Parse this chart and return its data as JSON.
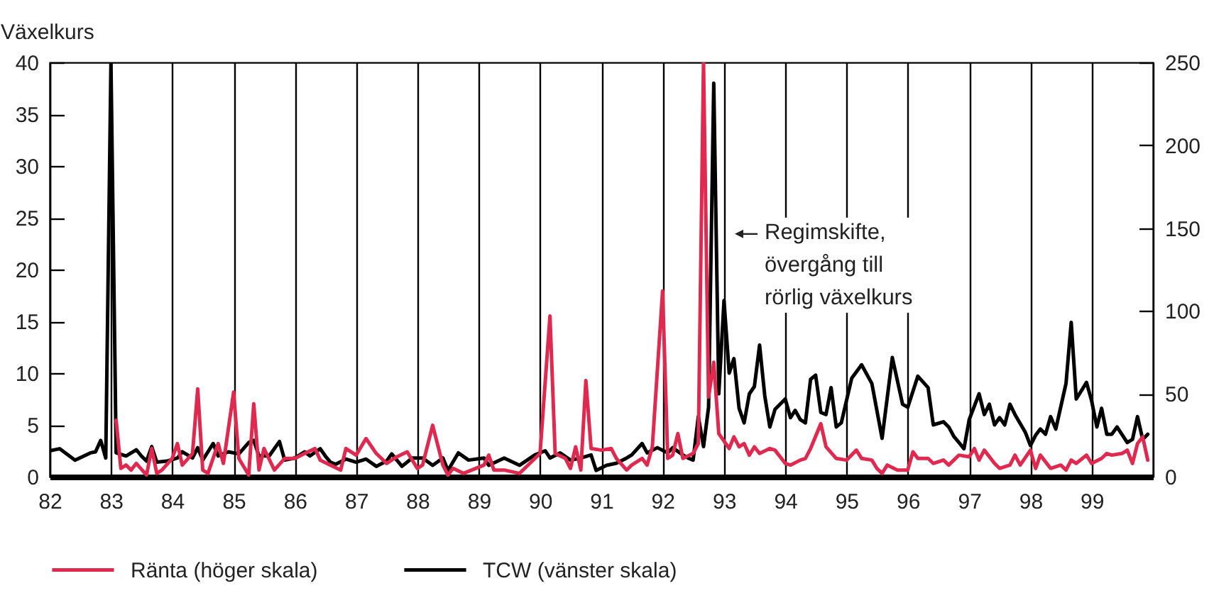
{
  "chart_data": {
    "type": "line",
    "ylabel": "Växelkurs",
    "xlim": [
      "1982-01",
      "2000-01"
    ],
    "xticks": [
      {
        "value": "1982",
        "label": "82"
      },
      {
        "value": "1983",
        "label": "83"
      },
      {
        "value": "1984",
        "label": "84"
      },
      {
        "value": "1985",
        "label": "85"
      },
      {
        "value": "1986",
        "label": "86"
      },
      {
        "value": "1987",
        "label": "87"
      },
      {
        "value": "1988",
        "label": "88"
      },
      {
        "value": "1989",
        "label": "89"
      },
      {
        "value": "1990",
        "label": "90"
      },
      {
        "value": "1991",
        "label": "91"
      },
      {
        "value": "1992",
        "label": "92"
      },
      {
        "value": "1993",
        "label": "93"
      },
      {
        "value": "1994",
        "label": "94"
      },
      {
        "value": "1995",
        "label": "95"
      },
      {
        "value": "1996",
        "label": "96"
      },
      {
        "value": "1997",
        "label": "97"
      },
      {
        "value": "1998",
        "label": "98"
      },
      {
        "value": "1999",
        "label": "99"
      }
    ],
    "ylim": [
      0,
      40
    ],
    "yticks": [
      0,
      5,
      10,
      15,
      20,
      25,
      30,
      35,
      40
    ],
    "y2lim": [
      0,
      250
    ],
    "y2ticks": [
      0,
      50,
      100,
      150,
      200,
      250
    ],
    "grid": "x",
    "legend": "bottom",
    "annotations": [
      "Regimskifte,\növergång till\nrörlig växelkurs"
    ],
    "series": [
      {
        "name": "Ränta (höger skala)",
        "color": "#e0294f",
        "axis": "y2",
        "x": [
          "1983-02",
          "1983-03",
          "1983-04",
          "1983-05",
          "1983-06",
          "1983-08",
          "1983-09",
          "1983-10",
          "1983-11",
          "1984-01",
          "1984-02",
          "1984-03",
          "1984-05",
          "1984-06",
          "1984-07",
          "1984-08",
          "1984-10",
          "1984-11",
          "1985-01",
          "1985-02",
          "1985-04",
          "1985-05",
          "1985-06",
          "1985-07",
          "1985-09",
          "1985-11",
          "1986-01",
          "1986-03",
          "1986-05",
          "1986-06",
          "1986-08",
          "1986-10",
          "1986-11",
          "1987-01",
          "1987-03",
          "1987-05",
          "1987-06",
          "1987-07",
          "1987-09",
          "1987-11",
          "1988-01",
          "1988-02",
          "1988-04",
          "1988-06",
          "1988-07",
          "1988-08",
          "1988-10",
          "1989-02",
          "1989-03",
          "1989-04",
          "1989-06",
          "1989-09",
          "1989-11",
          "1990-01",
          "1990-03",
          "1990-04",
          "1990-06",
          "1990-07",
          "1990-08",
          "1990-09",
          "1990-10",
          "1990-11",
          "1991-01",
          "1991-03",
          "1991-04",
          "1991-06",
          "1991-07",
          "1991-09",
          "1991-10",
          "1991-11",
          "1992-01",
          "1992-02",
          "1992-03",
          "1992-04",
          "1992-05",
          "1992-07",
          "1992-08",
          "1992-09",
          "1992-10",
          "1992-11",
          "1992-12",
          "1993-02",
          "1993-03",
          "1993-04",
          "1993-05",
          "1993-06",
          "1993-07",
          "1993-08",
          "1993-10",
          "1993-11",
          "1994-01",
          "1994-02",
          "1994-04",
          "1994-05",
          "1994-06",
          "1994-08",
          "1994-09",
          "1994-11",
          "1995-01",
          "1995-03",
          "1995-04",
          "1995-06",
          "1995-07",
          "1995-08",
          "1995-09",
          "1995-11",
          "1996-01",
          "1996-02",
          "1996-03",
          "1996-05",
          "1996-06",
          "1996-08",
          "1996-09",
          "1996-11",
          "1997-01",
          "1997-02",
          "1997-03",
          "1997-04",
          "1997-06",
          "1997-07",
          "1997-09",
          "1997-10",
          "1997-11",
          "1998-01",
          "1998-02",
          "1998-03",
          "1998-05",
          "1998-07",
          "1998-08",
          "1998-09",
          "1998-10",
          "1998-12",
          "1999-01",
          "1999-03",
          "1999-04",
          "1999-05",
          "1999-07",
          "1999-08",
          "1999-09",
          "1999-10",
          "1999-11",
          "1999-12"
        ],
        "values": [
          34,
          5,
          7,
          4,
          8,
          1,
          17,
          2,
          4,
          11,
          20,
          7,
          14,
          53,
          4,
          2,
          20,
          8,
          51,
          11,
          1,
          44,
          4,
          17,
          4,
          11,
          11,
          14,
          17,
          10,
          7,
          4,
          17,
          13,
          23,
          14,
          11,
          8,
          12,
          15,
          5,
          7,
          31,
          7,
          1,
          5,
          2,
          7,
          13,
          4,
          4,
          2,
          8,
          14,
          97,
          14,
          11,
          5,
          18,
          4,
          58,
          17,
          16,
          17,
          11,
          4,
          7,
          11,
          7,
          18,
          112,
          11,
          13,
          26,
          11,
          14,
          20,
          250,
          48,
          69,
          26,
          17,
          24,
          18,
          20,
          13,
          18,
          14,
          17,
          16,
          8,
          7,
          10,
          11,
          17,
          32,
          18,
          11,
          10,
          16,
          11,
          10,
          5,
          2,
          7,
          4,
          4,
          15,
          11,
          11,
          8,
          10,
          7,
          13,
          12,
          17,
          10,
          16,
          8,
          5,
          7,
          13,
          7,
          16,
          5,
          13,
          5,
          7,
          4,
          10,
          8,
          13,
          8,
          11,
          14,
          13,
          14,
          16,
          8,
          20,
          24,
          10
        ]
      },
      {
        "name": "TCW (vänster skala)",
        "color": "#000000",
        "x": [
          "1982-01",
          "1982-03",
          "1982-06",
          "1982-09",
          "1982-10",
          "1982-11",
          "1982-12",
          "1983-01",
          "1983-02",
          "1983-04",
          "1983-06",
          "1983-07",
          "1983-08",
          "1983-09",
          "1983-10",
          "1983-12",
          "1984-02",
          "1984-03",
          "1984-05",
          "1984-06",
          "1984-07",
          "1984-09",
          "1984-10",
          "1984-12",
          "1985-02",
          "1985-04",
          "1985-05",
          "1985-06",
          "1985-08",
          "1985-10",
          "1985-11",
          "1986-01",
          "1986-03",
          "1986-04",
          "1986-06",
          "1986-07",
          "1986-08",
          "1986-09",
          "1986-11",
          "1987-01",
          "1987-03",
          "1987-05",
          "1987-07",
          "1987-08",
          "1987-10",
          "1987-12",
          "1988-02",
          "1988-04",
          "1988-06",
          "1988-07",
          "1988-09",
          "1988-11",
          "1989-02",
          "1989-03",
          "1989-06",
          "1989-09",
          "1989-12",
          "1990-02",
          "1990-03",
          "1990-05",
          "1990-07",
          "1990-09",
          "1990-11",
          "1990-12",
          "1991-02",
          "1991-04",
          "1991-06",
          "1991-07",
          "1991-09",
          "1991-10",
          "1991-12",
          "1992-02",
          "1992-03",
          "1992-05",
          "1992-06",
          "1992-07",
          "1992-08",
          "1992-09",
          "1992-10",
          "1992-11",
          "1992-12",
          "1993-01",
          "1993-02",
          "1993-03",
          "1993-04",
          "1993-05",
          "1993-06",
          "1993-07",
          "1993-08",
          "1993-09",
          "1993-10",
          "1993-11",
          "1994-01",
          "1994-02",
          "1994-03",
          "1994-04",
          "1994-05",
          "1994-06",
          "1994-07",
          "1994-08",
          "1994-09",
          "1994-10",
          "1994-11",
          "1994-12",
          "1995-02",
          "1995-04",
          "1995-06",
          "1995-08",
          "1995-10",
          "1995-12",
          "1996-01",
          "1996-03",
          "1996-05",
          "1996-06",
          "1996-08",
          "1996-09",
          "1996-10",
          "1996-11",
          "1996-12",
          "1997-01",
          "1997-03",
          "1997-04",
          "1997-05",
          "1997-06",
          "1997-07",
          "1997-08",
          "1997-09",
          "1997-10",
          "1997-12",
          "1998-01",
          "1998-02",
          "1998-03",
          "1998-04",
          "1998-05",
          "1998-06",
          "1998-08",
          "1998-09",
          "1998-10",
          "1998-12",
          "1999-01",
          "1999-02",
          "1999-03",
          "1999-04",
          "1999-05",
          "1999-06",
          "1999-08",
          "1999-09",
          "1999-10",
          "1999-11",
          "1999-12"
        ],
        "values": [
          2.5,
          2.7,
          1.6,
          2.3,
          2.4,
          3.5,
          1.8,
          40,
          2.3,
          2.0,
          2.6,
          2.0,
          1.5,
          2.9,
          1.4,
          1.5,
          1.8,
          2.4,
          1.8,
          2.8,
          1.6,
          3.2,
          2.0,
          2.4,
          2.2,
          3.3,
          3.5,
          2.0,
          2.0,
          3.4,
          1.6,
          1.8,
          2.4,
          2.0,
          2.7,
          2.0,
          1.4,
          1.2,
          1.7,
          1.4,
          1.7,
          1.0,
          1.5,
          2.2,
          1.0,
          1.8,
          1.8,
          1.1,
          1.8,
          0.6,
          2.3,
          1.6,
          1.8,
          1.1,
          1.8,
          1.1,
          2.1,
          2.5,
          1.8,
          2.3,
          1.6,
          1.8,
          2.1,
          0.6,
          1.1,
          1.3,
          1.8,
          2.1,
          3.2,
          2.3,
          2.8,
          2.3,
          2.8,
          2.1,
          1.8,
          1.6,
          5.8,
          2.9,
          6.7,
          38.0,
          8.0,
          17.0,
          10.0,
          11.4,
          6.6,
          5.2,
          8.0,
          8.7,
          12.7,
          7.8,
          4.8,
          6.5,
          7.5,
          5.7,
          6.4,
          5.5,
          5.2,
          9.4,
          9.8,
          6.2,
          6.0,
          8.6,
          4.8,
          5.2,
          9.5,
          10.8,
          9.0,
          3.7,
          11.5,
          7.0,
          6.7,
          9.7,
          8.6,
          5.0,
          5.3,
          4.8,
          3.9,
          3.3,
          2.7,
          5.5,
          8.0,
          6.0,
          7.0,
          5.0,
          5.7,
          5.0,
          7.0,
          6.0,
          4.3,
          3.0,
          4.0,
          4.6,
          4.1,
          5.8,
          4.6,
          9.0,
          14.9,
          7.5,
          9.1,
          7.3,
          4.8,
          6.6,
          4.1,
          4.1,
          4.8,
          3.3,
          3.6,
          5.8,
          3.6,
          4.1
        ]
      }
    ]
  }
}
